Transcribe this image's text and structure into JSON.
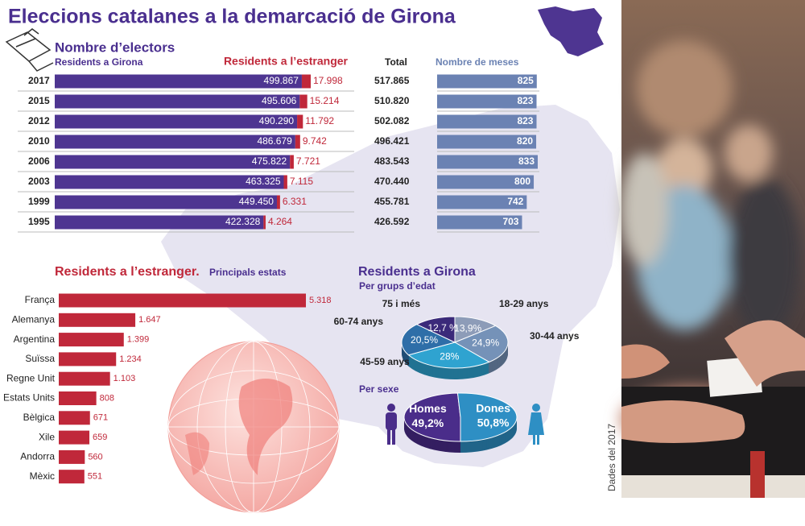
{
  "title": "Eleccions catalanes a la demarcació de Girona",
  "note": "Dades del 2017",
  "chart_data": [
    {
      "type": "stacked-bar",
      "title": "Nombre d’electors",
      "categories": [
        "2017",
        "2015",
        "2012",
        "2010",
        "2006",
        "2003",
        "1999",
        "1995"
      ],
      "series": [
        {
          "name": "Residents a Girona",
          "color": "#4e3591",
          "values": [
            499867,
            495606,
            490290,
            486679,
            475822,
            463325,
            449450,
            422328
          ],
          "value_labels": [
            "499.867",
            "495.606",
            "490.290",
            "486.679",
            "475.822",
            "463.325",
            "449.450",
            "422.328"
          ]
        },
        {
          "name": "Residents a l’estranger",
          "color": "#c0283a",
          "values": [
            17998,
            15214,
            11792,
            9742,
            7721,
            7115,
            6331,
            4264
          ],
          "value_labels": [
            "17.998",
            "15.214",
            "11.792",
            "9.742",
            "7.721",
            "7.115",
            "6.331",
            "4.264"
          ]
        }
      ],
      "total": {
        "name": "Total",
        "values": [
          517865,
          510820,
          502082,
          496421,
          483543,
          470440,
          455781,
          426592
        ],
        "value_labels": [
          "517.865",
          "510.820",
          "502.082",
          "496.421",
          "483.543",
          "470.440",
          "455.781",
          "426.592"
        ]
      }
    },
    {
      "type": "hbar",
      "title": "Nombre de meses",
      "color": "#6b82b3",
      "categories": [
        "2017",
        "2015",
        "2012",
        "2010",
        "2006",
        "2003",
        "1999",
        "1995"
      ],
      "values": [
        825,
        823,
        823,
        820,
        833,
        800,
        742,
        703
      ]
    },
    {
      "type": "hbar",
      "title": "Residents a l’estranger.",
      "subtitle": "Principals estats",
      "color": "#c0283a",
      "categories": [
        "França",
        "Alemanya",
        "Argentina",
        "Suïssa",
        "Regne Unit",
        "Estats Units",
        "Bèlgica",
        "Xile",
        "Andorra",
        "Mèxic"
      ],
      "values": [
        5318,
        1647,
        1399,
        1234,
        1103,
        808,
        671,
        659,
        560,
        551
      ],
      "value_labels": [
        "5.318",
        "1.647",
        "1.399",
        "1.234",
        "1.103",
        "808",
        "671",
        "659",
        "560",
        "551"
      ]
    },
    {
      "type": "pie",
      "title": "Residents a Girona",
      "subtitle": "Per grups d’edat",
      "categories": [
        "18-29 anys",
        "30-44 anys",
        "45-59 anys",
        "60-74 anys",
        "75 i més"
      ],
      "values": [
        13.9,
        24.9,
        28,
        20.5,
        12.7
      ],
      "value_labels": [
        "13,9%",
        "24,9%",
        "28%",
        "20,5%",
        "12,7 %"
      ],
      "colors": [
        "#8d9cb8",
        "#7592b8",
        "#2fa3d0",
        "#2e6ea8",
        "#3b2a7a"
      ]
    },
    {
      "type": "pie",
      "subtitle": "Per sexe",
      "categories": [
        "Homes",
        "Dones"
      ],
      "values": [
        49.2,
        50.8
      ],
      "value_labels": [
        "49,2%",
        "50,8%"
      ],
      "colors": [
        "#4a2d8a",
        "#2e8fc4"
      ]
    }
  ]
}
